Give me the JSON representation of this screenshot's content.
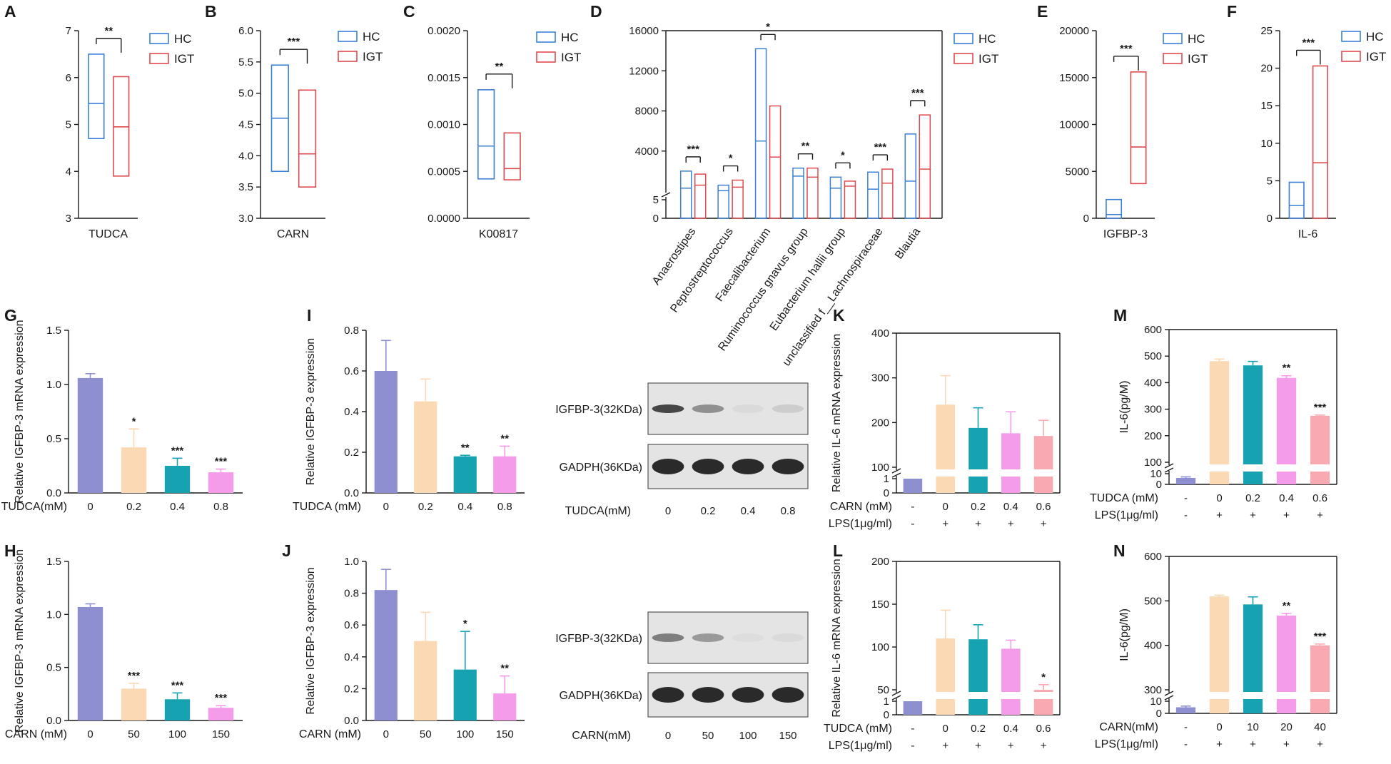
{
  "colors": {
    "hc": "#3b7fd6",
    "igt": "#e04a4f",
    "ctrl": "#8e8fd1",
    "c1": "#fbd9b4",
    "c2": "#16a2b1",
    "c3": "#f49be9",
    "c4": "#f8a9b2",
    "axis": "#1a1a1a",
    "blot_bg": "#cfcfcf",
    "band": "#2a2a2a"
  },
  "chart_data": [
    {
      "id": "A",
      "panel_label": "A",
      "type": "box",
      "xlabel": "TUDCA",
      "ylim": [
        3,
        7
      ],
      "yticks": [
        "3",
        "4",
        "5",
        "6",
        "7"
      ],
      "legend": [
        "HC",
        "IGT"
      ],
      "groups": [
        {
          "name": "HC",
          "min": 4.7,
          "q1": 4.7,
          "median": 5.45,
          "q3": 6.5,
          "max": 6.5
        },
        {
          "name": "IGT",
          "min": 3.9,
          "q1": 3.9,
          "median": 4.95,
          "q3": 6.02,
          "max": 6.02
        }
      ],
      "sig": "**"
    },
    {
      "id": "B",
      "panel_label": "B",
      "type": "box",
      "xlabel": "CARN",
      "ylim": [
        3.0,
        6.0
      ],
      "yticks": [
        "3.0",
        "3.5",
        "4.0",
        "4.5",
        "5.0",
        "5.5",
        "6.0"
      ],
      "legend": [
        "HC",
        "IGT"
      ],
      "groups": [
        {
          "name": "HC",
          "min": 3.75,
          "q1": 3.75,
          "median": 4.6,
          "q3": 5.45,
          "max": 5.45
        },
        {
          "name": "IGT",
          "min": 3.5,
          "q1": 3.5,
          "median": 4.03,
          "q3": 5.05,
          "max": 5.05
        }
      ],
      "sig": "***"
    },
    {
      "id": "C",
      "panel_label": "C",
      "type": "box",
      "xlabel": "K00817",
      "ylim": [
        0,
        0.002
      ],
      "yticks": [
        "0.0000",
        "0.0005",
        "0.0010",
        "0.0015",
        "0.0020"
      ],
      "legend": [
        "HC",
        "IGT"
      ],
      "groups": [
        {
          "name": "HC",
          "min": 0.00042,
          "q1": 0.00042,
          "median": 0.00077,
          "q3": 0.00137,
          "max": 0.00137
        },
        {
          "name": "IGT",
          "min": 0.00041,
          "q1": 0.00041,
          "median": 0.00053,
          "q3": 0.00091,
          "max": 0.00091
        }
      ],
      "sig": "**"
    },
    {
      "id": "D",
      "panel_label": "D",
      "type": "box",
      "ylim": [
        0,
        16000
      ],
      "break_label": "5",
      "yticks": [
        "0",
        "5",
        "4000",
        "8000",
        "12000",
        "16000"
      ],
      "legend": [
        "HC",
        "IGT"
      ],
      "categories": [
        "Anaerostipes",
        "Peptostreptococcus",
        "Faecalibacterium",
        "Ruminococcus gnavus group",
        "Eubacterium hallii group",
        "unclassified f__Lachnospiraceae",
        "Blautia"
      ],
      "series": [
        {
          "name": "HC",
          "boxes": [
            {
              "q1": 0,
              "median": 300,
              "q3": 2000
            },
            {
              "q1": 0,
              "median": 50,
              "q3": 600
            },
            {
              "q1": 0,
              "median": 5000,
              "q3": 14200
            },
            {
              "q1": 0,
              "median": 1500,
              "q3": 2300
            },
            {
              "q1": 0,
              "median": 300,
              "q3": 1400
            },
            {
              "q1": 0,
              "median": 200,
              "q3": 1900
            },
            {
              "q1": 0,
              "median": 1000,
              "q3": 5700
            }
          ]
        },
        {
          "name": "IGT",
          "boxes": [
            {
              "q1": 0,
              "median": 600,
              "q3": 1700
            },
            {
              "q1": 0,
              "median": 400,
              "q3": 1100
            },
            {
              "q1": 0,
              "median": 3400,
              "q3": 8500
            },
            {
              "q1": 0,
              "median": 1400,
              "q3": 2300
            },
            {
              "q1": 0,
              "median": 500,
              "q3": 1000
            },
            {
              "q1": 0,
              "median": 800,
              "q3": 2200
            },
            {
              "q1": 0,
              "median": 2200,
              "q3": 7600
            }
          ]
        }
      ],
      "sig": [
        "***",
        "*",
        "*",
        "**",
        "*",
        "***",
        "***"
      ]
    },
    {
      "id": "E",
      "panel_label": "E",
      "type": "box",
      "xlabel": "IGFBP-3",
      "ylim": [
        0,
        20000
      ],
      "yticks": [
        "0",
        "5000",
        "10000",
        "15000",
        "20000"
      ],
      "legend": [
        "HC",
        "IGT"
      ],
      "groups": [
        {
          "name": "HC",
          "min": 0,
          "q1": 0,
          "median": 400,
          "q3": 2000,
          "max": 2000
        },
        {
          "name": "IGT",
          "min": 3700,
          "q1": 3700,
          "median": 7600,
          "q3": 15600,
          "max": 15600
        }
      ],
      "sig": "***"
    },
    {
      "id": "F",
      "panel_label": "F",
      "type": "box",
      "xlabel": "IL-6",
      "ylim": [
        0,
        25
      ],
      "yticks": [
        "0",
        "5",
        "10",
        "15",
        "20",
        "25"
      ],
      "legend": [
        "HC",
        "IGT"
      ],
      "groups": [
        {
          "name": "HC",
          "min": 0,
          "q1": 0,
          "median": 1.7,
          "q3": 4.8,
          "max": 4.8
        },
        {
          "name": "IGT",
          "min": 0,
          "q1": 0,
          "median": 7.4,
          "q3": 20.3,
          "max": 20.3
        }
      ],
      "sig": "***"
    },
    {
      "id": "G",
      "panel_label": "G",
      "type": "bar",
      "ylabel": "Relative IGFBP-3 mRNA expression",
      "ylim": [
        0,
        1.5
      ],
      "yticks": [
        "0.0",
        "0.5",
        "1.0",
        "1.5"
      ],
      "row_labels": [
        "TUDCA(mM)"
      ],
      "categories": [
        "0",
        "0.2",
        "0.4",
        "0.8"
      ],
      "values": [
        1.06,
        0.42,
        0.25,
        0.19
      ],
      "errors": [
        0.04,
        0.17,
        0.07,
        0.03
      ],
      "sig": [
        "",
        "*",
        "***",
        "***"
      ]
    },
    {
      "id": "H",
      "panel_label": "H",
      "type": "bar",
      "ylabel": "Relative IGFBP-3 mRNA expression",
      "ylim": [
        0,
        1.5
      ],
      "yticks": [
        "0.0",
        "0.5",
        "1.0",
        "1.5"
      ],
      "row_labels": [
        "CARN (mM)"
      ],
      "categories": [
        "0",
        "50",
        "100",
        "150"
      ],
      "values": [
        1.07,
        0.3,
        0.2,
        0.12
      ],
      "errors": [
        0.03,
        0.05,
        0.06,
        0.02
      ],
      "sig": [
        "",
        "***",
        "***",
        "***"
      ]
    },
    {
      "id": "I",
      "panel_label": "I",
      "type": "bar",
      "ylabel": "Relative IGFBP-3 expression",
      "ylim": [
        0,
        0.8
      ],
      "yticks": [
        "0.0",
        "0.2",
        "0.4",
        "0.6",
        "0.8"
      ],
      "row_labels": [
        "TUDCA (mM)"
      ],
      "categories": [
        "0",
        "0.2",
        "0.4",
        "0.8"
      ],
      "values": [
        0.6,
        0.45,
        0.18,
        0.18
      ],
      "errors": [
        0.15,
        0.11,
        0.005,
        0.05
      ],
      "sig": [
        "",
        "",
        "**",
        "**"
      ]
    },
    {
      "id": "J",
      "panel_label": "J",
      "type": "bar",
      "ylabel": "Relative IGFBP-3 expression",
      "ylim": [
        0,
        1.0
      ],
      "yticks": [
        "0.0",
        "0.2",
        "0.4",
        "0.6",
        "0.8",
        "1.0"
      ],
      "row_labels": [
        "CARN (mM)"
      ],
      "categories": [
        "0",
        "50",
        "100",
        "150"
      ],
      "values": [
        0.82,
        0.5,
        0.32,
        0.17
      ],
      "errors": [
        0.13,
        0.18,
        0.24,
        0.11
      ],
      "sig": [
        "",
        "",
        "*",
        "**"
      ]
    },
    {
      "id": "K",
      "panel_label": "K",
      "type": "bar",
      "ylabel": "Relative IL-6 mRNA expression",
      "ylim": [
        0,
        400
      ],
      "break_low": [
        "0",
        "1"
      ],
      "yticks": [
        "100",
        "200",
        "300",
        "400"
      ],
      "row_labels": [
        "CARN (mM)",
        "LPS(1μg/ml)"
      ],
      "categories": [
        "-",
        "0",
        "0.2",
        "0.4",
        "0.6"
      ],
      "row2": [
        "-",
        "+",
        "+",
        "+",
        "+"
      ],
      "values": [
        1,
        240,
        188,
        176,
        170
      ],
      "errors": [
        0,
        65,
        45,
        48,
        35
      ],
      "sig": [
        "",
        "",
        "",
        "",
        ""
      ]
    },
    {
      "id": "L",
      "panel_label": "L",
      "type": "bar",
      "ylabel": "Relative IL-6 mRNA expression",
      "ylim": [
        0,
        200
      ],
      "break_low": [
        "0",
        "1"
      ],
      "yticks": [
        "50",
        "100",
        "150",
        "200"
      ],
      "row_labels": [
        "TUDCA (mM)",
        "LPS(1μg/ml)"
      ],
      "categories": [
        "-",
        "0",
        "0.2",
        "0.4",
        "0.6"
      ],
      "row2": [
        "-",
        "+",
        "+",
        "+",
        "+"
      ],
      "values": [
        1,
        110,
        109,
        98,
        44
      ],
      "errors": [
        0,
        33,
        17,
        10,
        12
      ],
      "sig": [
        "",
        "",
        "",
        "",
        "*"
      ]
    },
    {
      "id": "M",
      "panel_label": "M",
      "type": "bar",
      "ylabel": "IL-6(pg/M)",
      "ylim": [
        0,
        600
      ],
      "break_low": [
        "0",
        "10"
      ],
      "yticks": [
        "100",
        "200",
        "300",
        "400",
        "500",
        "600"
      ],
      "row_labels": [
        "TUDCA (mM)",
        "LPS(1μg/ml)"
      ],
      "categories": [
        "-",
        "0",
        "0.2",
        "0.4",
        "0.6"
      ],
      "row2": [
        "-",
        "+",
        "+",
        "+",
        "+"
      ],
      "values": [
        6,
        481,
        465,
        418,
        275
      ],
      "errors": [
        1,
        8,
        15,
        8,
        3
      ],
      "sig": [
        "",
        "",
        "",
        "**",
        "***"
      ]
    },
    {
      "id": "N",
      "panel_label": "N",
      "type": "bar",
      "ylabel": "IL-6(pg/M)",
      "ylim": [
        0,
        600
      ],
      "break_low": [
        "0",
        "10"
      ],
      "yticks": [
        "300",
        "400",
        "500",
        "600"
      ],
      "row_labels": [
        "CARN(mM)",
        "LPS(1μg/ml)"
      ],
      "categories": [
        "-",
        "0",
        "10",
        "20",
        "40"
      ],
      "row2": [
        "-",
        "+",
        "+",
        "+",
        "+"
      ],
      "values": [
        5,
        510,
        492,
        467,
        400
      ],
      "errors": [
        1,
        3,
        17,
        5,
        3
      ],
      "sig": [
        "",
        "",
        "",
        "**",
        "***"
      ]
    }
  ],
  "blots": [
    {
      "id": "blot-top",
      "bands": [
        "IGFBP-3(32KDa)",
        "GADPH(36KDa)"
      ],
      "xlabel": "TUDCA(mM)",
      "lanes": [
        "0",
        "0.2",
        "0.4",
        "0.8"
      ],
      "intensities": [
        [
          0.85,
          0.45,
          0.05,
          0.12
        ],
        [
          1,
          1,
          1,
          1
        ]
      ]
    },
    {
      "id": "blot-bottom",
      "bands": [
        "IGFBP-3(32KDa)",
        "GADPH(36KDa)"
      ],
      "xlabel": "CARN(mM)",
      "lanes": [
        "0",
        "50",
        "100",
        "150"
      ],
      "intensities": [
        [
          0.55,
          0.4,
          0.03,
          0.05
        ],
        [
          1,
          1,
          1,
          1
        ]
      ]
    }
  ]
}
